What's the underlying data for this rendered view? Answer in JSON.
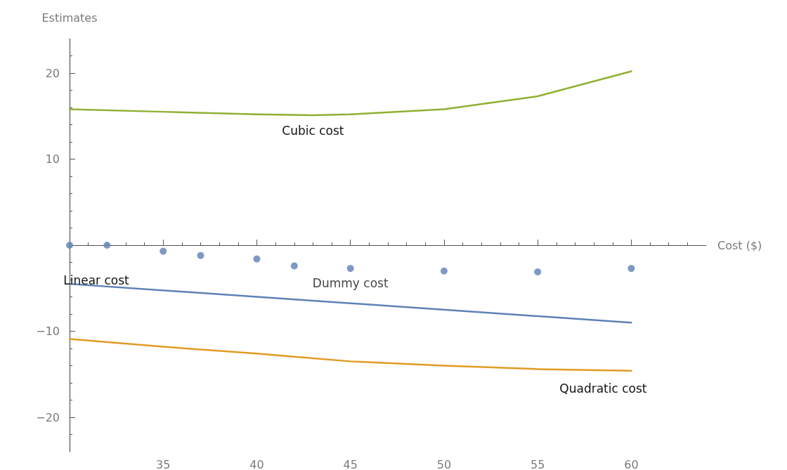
{
  "chart_data": {
    "type": "line",
    "xlabel": "Cost ($)",
    "ylabel": "Estimates",
    "xlim": [
      30,
      64
    ],
    "ylim": [
      -24,
      24
    ],
    "xticks": [
      35,
      40,
      45,
      50,
      55,
      60
    ],
    "yticks": [
      -20,
      -10,
      10,
      20
    ],
    "grid": false,
    "legend": false,
    "marker": "none",
    "line_style": "solid",
    "series": [
      {
        "name": "Cubic cost",
        "color": "#8fb032",
        "x": [
          30,
          35,
          40,
          43,
          45,
          50,
          55,
          60
        ],
        "values": [
          15.8,
          15.5,
          15.2,
          15.1,
          15.2,
          15.8,
          17.3,
          20.2
        ]
      },
      {
        "name": "Linear cost",
        "color": "#5e81b5",
        "x": [
          30,
          60
        ],
        "values": [
          -4.5,
          -9.0
        ]
      },
      {
        "name": "Dummy cost",
        "type": "scatter",
        "marker": "circle",
        "color": "#5e81b5",
        "x": [
          30,
          32,
          35,
          37,
          40,
          42,
          45,
          50,
          55,
          60
        ],
        "values": [
          0,
          0,
          -0.7,
          -1.2,
          -1.6,
          -2.4,
          -2.7,
          -3.0,
          -3.1,
          -2.7
        ]
      },
      {
        "name": "Quadratic cost",
        "color": "#e19c24",
        "x": [
          30,
          35,
          40,
          45,
          50,
          55,
          60
        ],
        "values": [
          -10.9,
          -11.8,
          -12.6,
          -13.5,
          -14.0,
          -14.4,
          -14.6
        ]
      }
    ]
  }
}
